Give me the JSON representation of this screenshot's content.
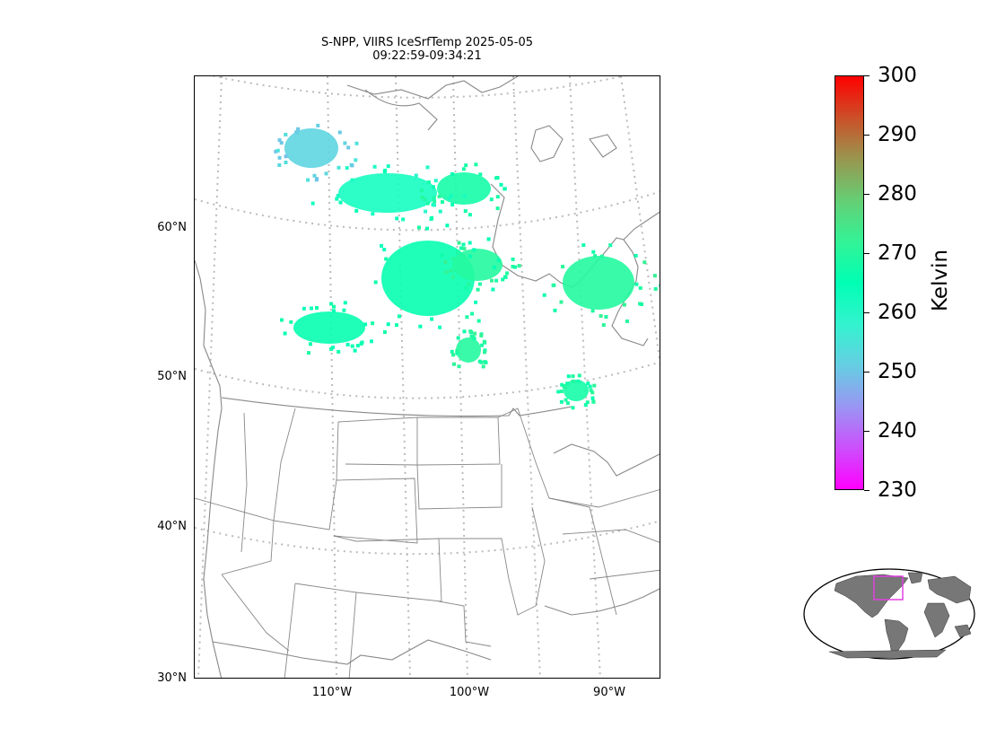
{
  "title": {
    "line1": "S-NPP, VIIRS IceSrfTemp 2025-05-05",
    "line2": "09:22:59-09:34:21"
  },
  "axes": {
    "lat_labels": [
      "60°N",
      "50°N",
      "40°N",
      "30°N"
    ],
    "lon_labels": [
      "110°W",
      "100°W",
      "90°W"
    ]
  },
  "colorbar": {
    "label": "Kelvin",
    "colormap": "rainbow",
    "min": 230,
    "max": 300,
    "ticks": [
      "300",
      "290",
      "280",
      "270",
      "260",
      "250",
      "240",
      "230"
    ]
  },
  "map_data": {
    "product": "IceSrfTemp",
    "units": "Kelvin",
    "projection": "conic",
    "lat_range": [
      30,
      70
    ],
    "lon_range": [
      -120,
      -85
    ],
    "gridlines": "dotted",
    "cluster_values_K": [
      252,
      262,
      268,
      266,
      270,
      270,
      266,
      270,
      268
    ]
  },
  "inset": {
    "name": "overview-globe",
    "land_color": "#777777",
    "box_color": "#e040e0"
  }
}
